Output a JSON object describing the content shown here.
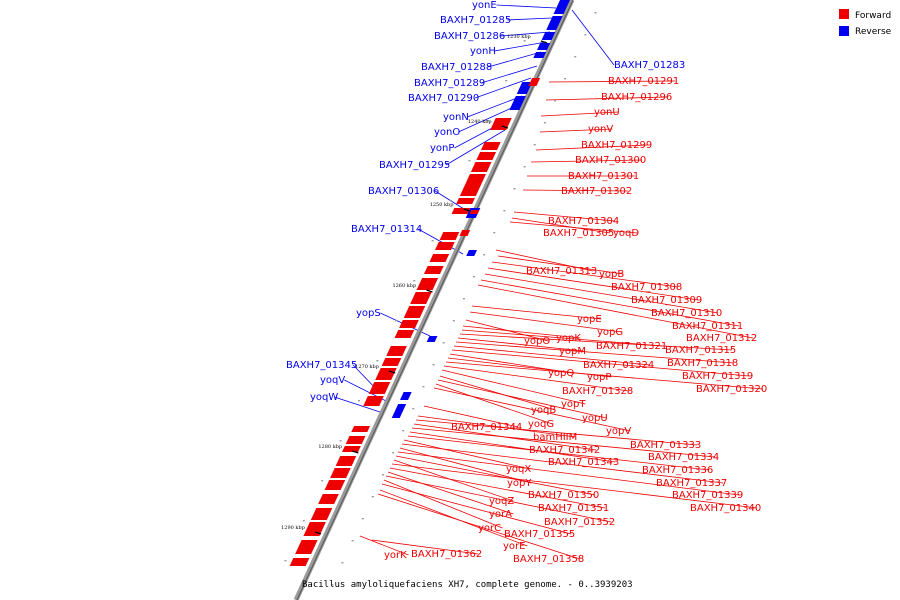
{
  "caption": "Bacillus amyloliquefaciens XH7, complete genome. - 0..3939203",
  "legend": [
    {
      "label": "Forward",
      "color": "#ee0000"
    },
    {
      "label": "Reverse",
      "color": "#0000ee"
    }
  ],
  "colors": {
    "forward": "#ee0000",
    "reverse": "#0000ee",
    "backbone": "#8a8a8a"
  },
  "ticks": [
    "1230 kbp",
    "1240 kbp",
    "1250 kbp",
    "1260 kbp",
    "1270 kbp",
    "1280 kbp",
    "1290 kbp"
  ],
  "reverse_genes": [
    "yonE",
    "BAXH7_01285",
    "BAXH7_01286",
    "yonH",
    "BAXH7_01288",
    "BAXH7_01289",
    "BAXH7_01290",
    "yonN",
    "yonO",
    "yonP",
    "BAXH7_01295",
    "BAXH7_01306",
    "BAXH7_01314",
    "yopS",
    "BAXH7_01345",
    "yoqV",
    "yoqW",
    "BAXH7_01283"
  ],
  "forward_genes": [
    "BAXH7_01291",
    "BAXH7_01296",
    "yonU",
    "yonV",
    "BAXH7_01299",
    "BAXH7_01300",
    "BAXH7_01301",
    "BAXH7_01302",
    "BAXH7_01304",
    "BAXH7_01305",
    "yoqD",
    "BAXH7_01313",
    "yopB",
    "BAXH7_01308",
    "BAXH7_01309",
    "BAXH7_01310",
    "BAXH7_01311",
    "BAXH7_01312",
    "yopE",
    "yopG",
    "yopO",
    "yopK",
    "BAXH7_01321",
    "BAXH7_01315",
    "yopM",
    "BAXH7_01318",
    "BAXH7_01324",
    "BAXH7_01319",
    "yopQ",
    "yopP",
    "BAXH7_01320",
    "BAXH7_01328",
    "yopT",
    "yoqB",
    "yopU",
    "yoqG",
    "yopV",
    "BAXH7_01344",
    "bamHIIM",
    "BAXH7_01333",
    "BAXH7_01342",
    "BAXH7_01334",
    "BAXH7_01343",
    "BAXH7_01336",
    "yoqX",
    "BAXH7_01337",
    "yopY",
    "BAXH7_01339",
    "BAXH7_01350",
    "yoqZ",
    "BAXH7_01340",
    "BAXH7_01351",
    "yorA",
    "BAXH7_01352",
    "yorC",
    "BAXH7_01355",
    "yorE",
    "BAXH7_01358",
    "yorK",
    "BAXH7_01362"
  ]
}
